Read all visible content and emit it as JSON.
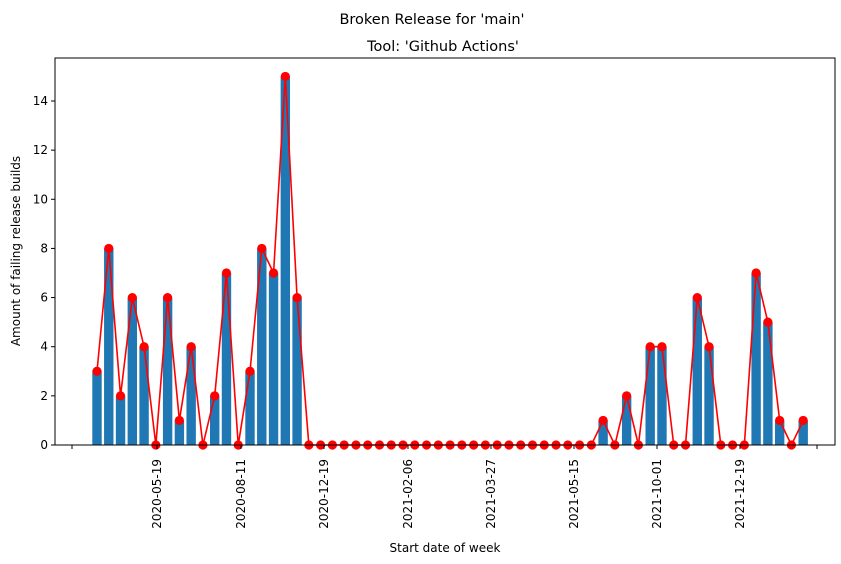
{
  "chart_data": {
    "type": "bar",
    "suptitle": "Broken Release for 'main'",
    "title": "Tool: 'Github Actions'",
    "xlabel": "Start date of week",
    "ylabel": "Amount of failing release builds",
    "ylim": [
      0,
      15.75
    ],
    "yticks": [
      0,
      2,
      4,
      6,
      8,
      10,
      12,
      14
    ],
    "xtick_labels": [
      "2020-05-19",
      "2020-08-11",
      "2020-12-19",
      "2021-02-06",
      "2021-03-27",
      "2021-05-15",
      "2021-10-01",
      "2021-12-19"
    ],
    "grid": false,
    "bar_color": "#1f77b4",
    "line_color": "#ff0000",
    "values": [
      3,
      8,
      2,
      6,
      4,
      0,
      6,
      1,
      4,
      0,
      2,
      7,
      0,
      3,
      8,
      7,
      15,
      6,
      0,
      0,
      0,
      0,
      0,
      0,
      0,
      0,
      0,
      0,
      0,
      0,
      0,
      0,
      0,
      0,
      0,
      0,
      0,
      0,
      0,
      0,
      0,
      0,
      0,
      1,
      0,
      2,
      0,
      4,
      4,
      0,
      0,
      6,
      4,
      0,
      0,
      0,
      7,
      5,
      1,
      0,
      1
    ]
  }
}
